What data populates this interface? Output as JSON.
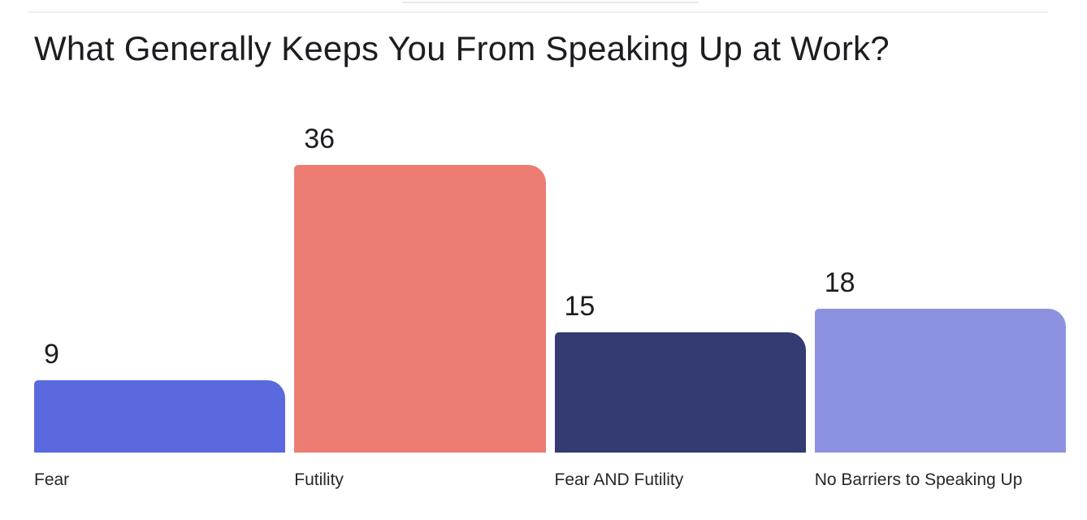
{
  "chart_data": {
    "type": "bar",
    "title": "What Generally Keeps You From Speaking Up at Work?",
    "categories": [
      "Fear",
      "Futility",
      "Fear AND Futility",
      "No Barriers to Speaking Up"
    ],
    "values": [
      9,
      36,
      15,
      18
    ],
    "value_labels": [
      "9",
      "36",
      "15",
      "18"
    ],
    "bar_colors": [
      "#5A69DE",
      "#ED7C73",
      "#333B72",
      "#8D92E0"
    ],
    "xlabel": "",
    "ylabel": "",
    "ylim": [
      0,
      36
    ],
    "axes_visible": false,
    "grid": false,
    "legend": false,
    "data_labels_position": "above-bar-left"
  }
}
